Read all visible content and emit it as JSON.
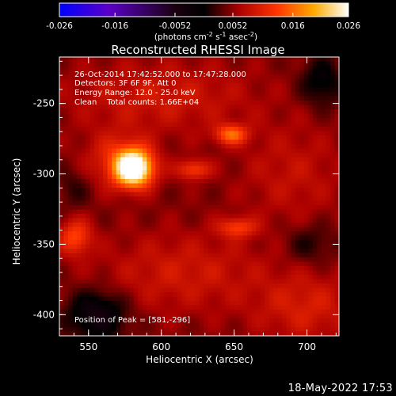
{
  "colors": {
    "background": "#000000",
    "text": "#ffffff",
    "colormap": [
      "#0000ff",
      "#5a00c8",
      "#000000",
      "#aa0000",
      "#ff3300",
      "#ffaa00",
      "#ffffff"
    ]
  },
  "colorbar": {
    "ticks": [
      "-0.026",
      "-0.016",
      "-0.0052",
      "0.0052",
      "0.016",
      "0.026"
    ],
    "units": "(photons cm",
    "units_sup1": "-2",
    "units_mid": " s",
    "units_sup2": "-1",
    "units_end": " asec",
    "units_sup3": "-2",
    "units_close": ")"
  },
  "chart_data": {
    "type": "heatmap",
    "title": "Reconstructed RHESSI Image",
    "xlabel": "Heliocentric X (arcsec)",
    "ylabel": "Heliocentric Y (arcsec)",
    "xlim": [
      530,
      722
    ],
    "ylim": [
      -415,
      -217
    ],
    "xticks": [
      "550",
      "600",
      "650",
      "700"
    ],
    "yticks": [
      "-250",
      "-300",
      "-350",
      "-400"
    ],
    "annotations": [
      "26-Oct-2014 17:42:52.000 to 17:47:28.000",
      "Detectors: 3F 6F 9F, Att 0",
      "Energy Range: 12.0 - 25.0 keV",
      "Clean    Total counts: 1.66E+04"
    ],
    "peak_label": "Position of Peak = [581,-296]",
    "peak": [
      581,
      -296
    ],
    "sources": [
      {
        "x": 581,
        "y": -296,
        "sx": 9,
        "sy": 9,
        "amp": 0.026
      },
      {
        "x": 570,
        "y": -290,
        "sx": 16,
        "sy": 14,
        "amp": 0.006
      },
      {
        "x": 648,
        "y": -272,
        "sx": 8,
        "sy": 5,
        "amp": 0.0105
      },
      {
        "x": 622,
        "y": -297,
        "sx": 8,
        "sy": 5,
        "amp": 0.0085
      },
      {
        "x": 652,
        "y": -338,
        "sx": 9,
        "sy": 5,
        "amp": 0.0078
      },
      {
        "x": 541,
        "y": -345,
        "sx": 8,
        "sy": 9,
        "amp": 0.0088
      },
      {
        "x": 600,
        "y": -245,
        "sx": 45,
        "sy": 18,
        "amp": 0.0045
      },
      {
        "x": 690,
        "y": -300,
        "sx": 25,
        "sy": 25,
        "amp": 0.0035
      },
      {
        "x": 615,
        "y": -370,
        "sx": 40,
        "sy": 20,
        "amp": 0.0045
      },
      {
        "x": 700,
        "y": -395,
        "sx": 25,
        "sy": 18,
        "amp": 0.005
      },
      {
        "x": 556,
        "y": -400,
        "sx": 14,
        "sy": 12,
        "amp": -0.009
      },
      {
        "x": 710,
        "y": -235,
        "sx": 10,
        "sy": 12,
        "amp": -0.006
      },
      {
        "x": 702,
        "y": -350,
        "sx": 12,
        "sy": 10,
        "amp": -0.004
      },
      {
        "x": 540,
        "y": -310,
        "sx": 8,
        "sy": 10,
        "amp": -0.003
      }
    ],
    "base_level": 0.0045,
    "vmin": -0.026,
    "vmax": 0.026
  },
  "timestamp": "18-May-2022 17:53"
}
